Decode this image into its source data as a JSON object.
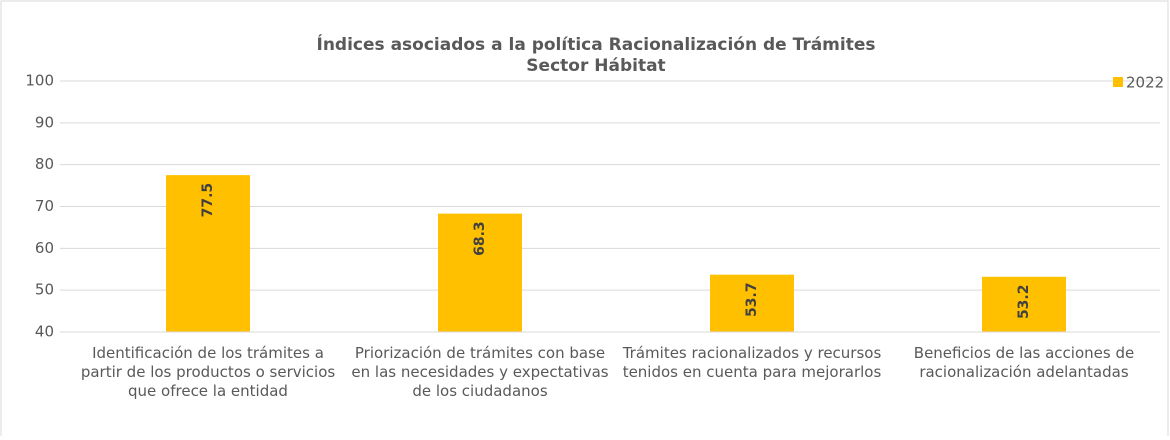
{
  "chart_data": {
    "type": "bar",
    "title": "Índices asociados a la política Racionalización de Trámites",
    "subtitle": "Sector Hábitat",
    "categories": [
      "Identificación de los trámites a partir de los productos o servicios que ofrece la entidad",
      "Priorización de trámites con base en las necesidades y expectativas de los ciudadanos",
      "Trámites racionalizados y recursos  tenidos en cuenta para mejorarlos",
      "Beneficios de las acciones de racionalización adelantadas"
    ],
    "series": [
      {
        "name": "2022",
        "color": "#ffc000",
        "values": [
          77.5,
          68.3,
          53.7,
          53.2
        ]
      }
    ],
    "ylim": [
      40,
      100
    ],
    "yticks": [
      40,
      50,
      60,
      70,
      80,
      90,
      100
    ],
    "grid": true,
    "legend": "top-right"
  }
}
